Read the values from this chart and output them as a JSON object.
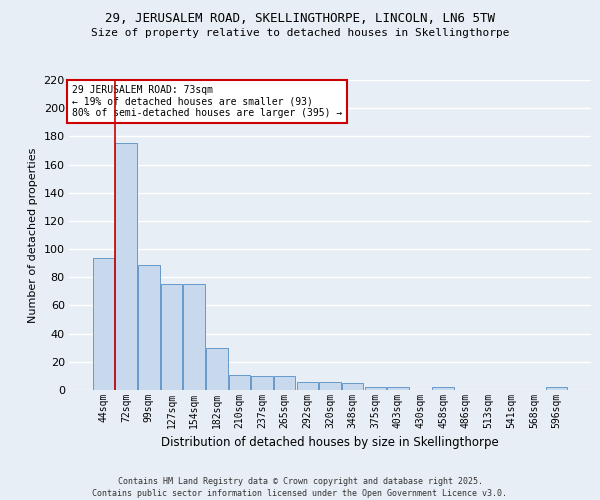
{
  "title1": "29, JERUSALEM ROAD, SKELLINGTHORPE, LINCOLN, LN6 5TW",
  "title2": "Size of property relative to detached houses in Skellingthorpe",
  "xlabel": "Distribution of detached houses by size in Skellingthorpe",
  "ylabel": "Number of detached properties",
  "categories": [
    "44sqm",
    "72sqm",
    "99sqm",
    "127sqm",
    "154sqm",
    "182sqm",
    "210sqm",
    "237sqm",
    "265sqm",
    "292sqm",
    "320sqm",
    "348sqm",
    "375sqm",
    "403sqm",
    "430sqm",
    "458sqm",
    "486sqm",
    "513sqm",
    "541sqm",
    "568sqm",
    "596sqm"
  ],
  "values": [
    94,
    175,
    89,
    75,
    75,
    30,
    11,
    10,
    10,
    6,
    6,
    5,
    2,
    2,
    0,
    2,
    0,
    0,
    0,
    0,
    2
  ],
  "bar_color": "#c8d9ed",
  "bar_edge_color": "#6699cc",
  "red_line_index": 1,
  "ylim": [
    0,
    220
  ],
  "yticks": [
    0,
    20,
    40,
    60,
    80,
    100,
    120,
    140,
    160,
    180,
    200,
    220
  ],
  "annotation_text": "29 JERUSALEM ROAD: 73sqm\n← 19% of detached houses are smaller (93)\n80% of semi-detached houses are larger (395) →",
  "annotation_box_color": "#ffffff",
  "annotation_box_edge_color": "#cc0000",
  "footer1": "Contains HM Land Registry data © Crown copyright and database right 2025.",
  "footer2": "Contains public sector information licensed under the Open Government Licence v3.0.",
  "bg_color": "#e8eef5",
  "grid_color": "#ffffff",
  "bar_width": 0.95
}
